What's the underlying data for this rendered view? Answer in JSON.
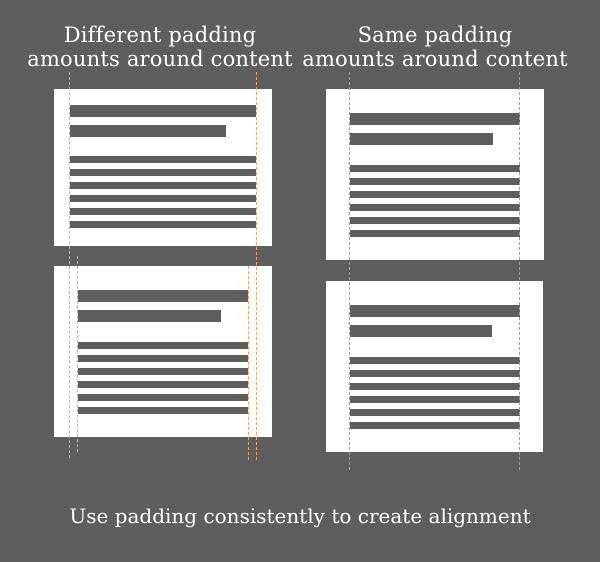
{
  "headings": {
    "left": [
      "Different padding",
      "amounts around content"
    ],
    "right": [
      "Same padding",
      "amounts around content"
    ]
  },
  "caption": "Use padding consistently to create alignment",
  "colors": {
    "background": "#5e5e5e",
    "card": "#ffffff",
    "content_bar": "#5e5e5e",
    "guide_left": "#f2a26a",
    "guide_right": "#1fd3ee"
  }
}
